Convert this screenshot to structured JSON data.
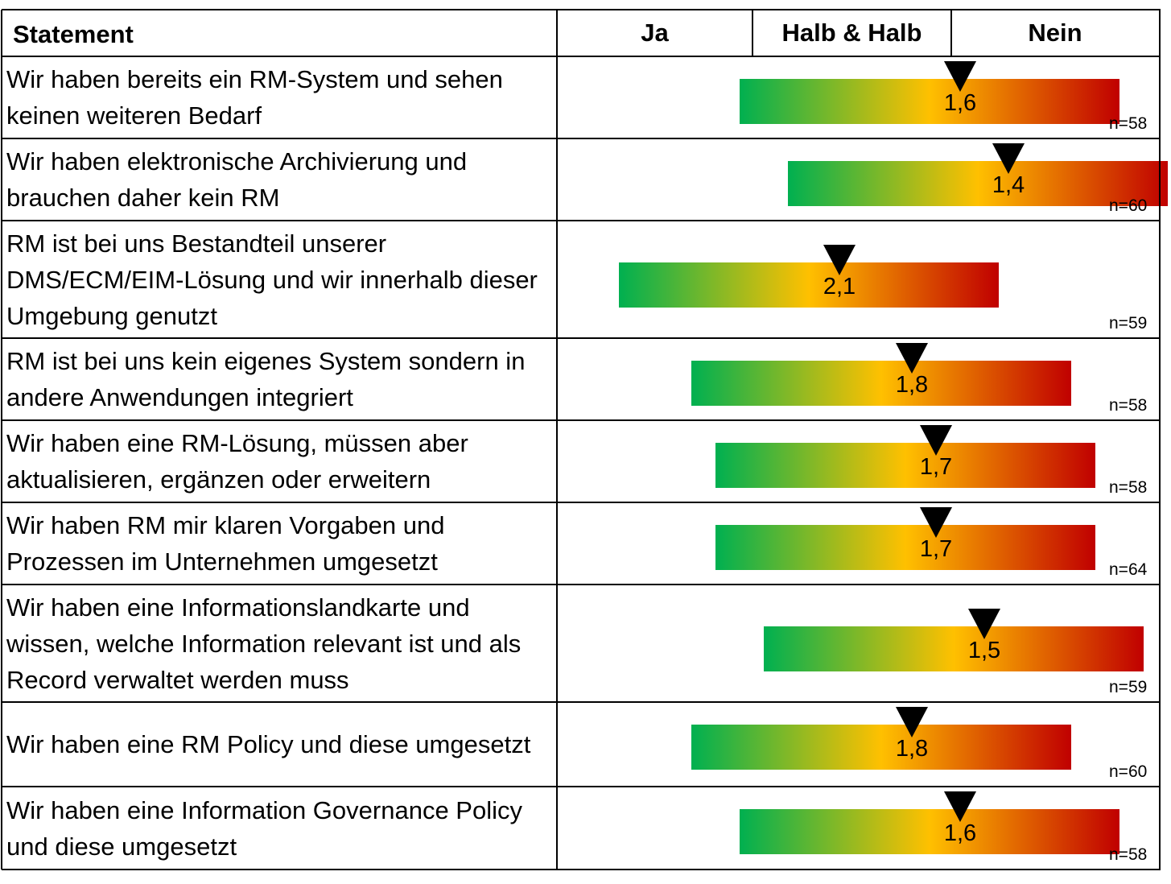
{
  "chart_data": {
    "type": "table",
    "columns": {
      "statement": "Statement",
      "ja": "Ja",
      "halb": "Halb & Halb",
      "nein": "Nein"
    },
    "rows": [
      {
        "statement": "Wir haben bereits ein RM-System und sehen keinen weiteren Bedarf",
        "value": 1.6,
        "value_label": "1,6",
        "n": "n=58"
      },
      {
        "statement": "Wir haben elektronische Archivierung und brauchen daher kein RM",
        "value": 1.4,
        "value_label": "1,4",
        "n": "n=60"
      },
      {
        "statement": "RM ist bei uns Bestandteil unserer DMS/ECM/EIM-Lösung und wir innerhalb dieser Umgebung genutzt",
        "value": 2.1,
        "value_label": "2,1",
        "n": "n=59"
      },
      {
        "statement": "RM ist bei uns kein eigenes System sondern in andere Anwendungen integriert",
        "value": 1.8,
        "value_label": "1,8",
        "n": "n=58"
      },
      {
        "statement": "Wir haben eine RM-Lösung, müssen aber aktualisieren, ergänzen oder erweitern",
        "value": 1.7,
        "value_label": "1,7",
        "n": "n=58"
      },
      {
        "statement": "Wir haben RM mir klaren Vorgaben und Prozessen im Unternehmen umgesetzt",
        "value": 1.7,
        "value_label": "1,7",
        "n": "n=64"
      },
      {
        "statement": "Wir haben eine Informationslandkarte und wissen, welche Information relevant ist und als Record verwaltet werden muss",
        "value": 1.5,
        "value_label": "1,5",
        "n": "n=59"
      },
      {
        "statement": "Wir haben eine RM Policy und diese umgesetzt",
        "value": 1.8,
        "value_label": "1,8",
        "n": "n=60"
      },
      {
        "statement": "Wir haben eine Information Governance Policy und diese umgesetzt",
        "value": 1.6,
        "value_label": "1,6",
        "n": "n=58"
      }
    ],
    "colors": {
      "ja": "#00b050",
      "halb": "#ffc000",
      "nein": "#c00000",
      "marker": "#000000"
    }
  }
}
